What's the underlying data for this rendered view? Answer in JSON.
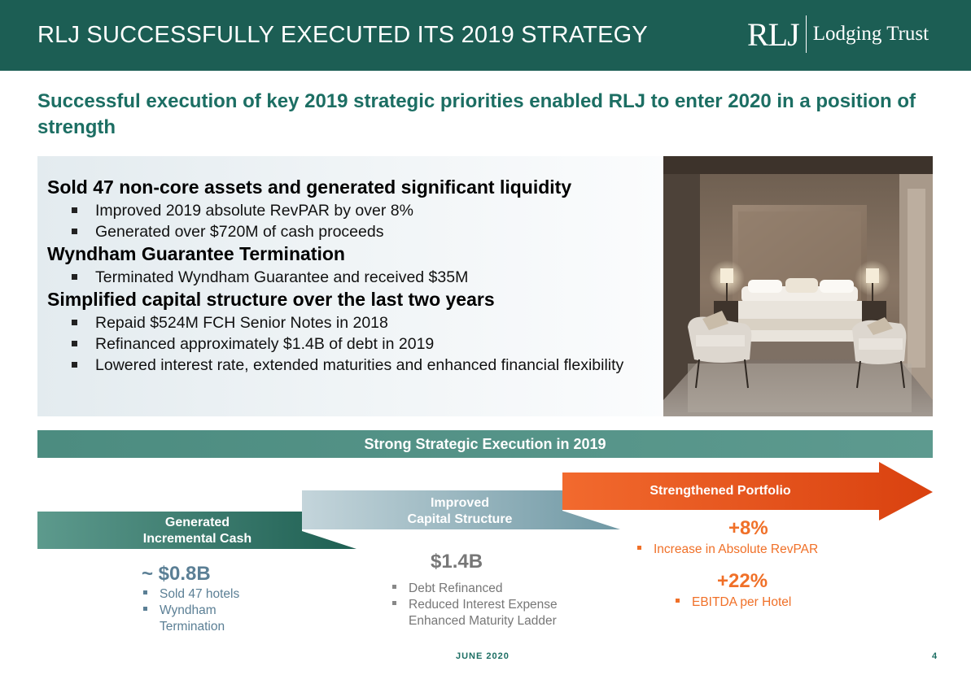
{
  "header": {
    "title": "RLJ SUCCESSFULLY EXECUTED ITS 2019 STRATEGY",
    "logo_mark": "RLJ",
    "logo_text": "Lodging Trust"
  },
  "subtitle": "Successful execution of key 2019 strategic priorities enabled RLJ to enter 2020 in a position of strength",
  "sections": [
    {
      "heading": "Sold 47 non-core assets and generated significant liquidity",
      "bullets": [
        "Improved 2019 absolute RevPAR by over 8%",
        "Generated over $720M of cash proceeds"
      ]
    },
    {
      "heading": "Wyndham Guarantee Termination",
      "bullets": [
        "Terminated Wyndham Guarantee and received $35M"
      ]
    },
    {
      "heading": "Simplified capital structure over the last two years",
      "bullets": [
        "Repaid $524M FCH Senior Notes in 2018",
        "Refinanced approximately $1.4B of debt in 2019",
        "Lowered interest rate, extended maturities and enhanced financial flexibility"
      ]
    }
  ],
  "execution_bar": "Strong Strategic Execution in 2019",
  "steps": [
    {
      "label_line1": "Generated",
      "label_line2": "Incremental Cash",
      "value": "~ $0.8B",
      "bullets": [
        "Sold 47 hotels",
        "Wyndham",
        "Termination"
      ]
    },
    {
      "label_line1": "Improved",
      "label_line2": "Capital Structure",
      "value": "$1.4B",
      "bullets": [
        "Debt Refinanced",
        "Reduced Interest Expense",
        "Enhanced Maturity Ladder"
      ]
    },
    {
      "label": "Strengthened Portfolio",
      "value1": "+8%",
      "bullet1": "Increase in Absolute RevPAR",
      "value2": "+22%",
      "bullet2": "EBITDA per Hotel"
    }
  ],
  "colors": {
    "header_green": "#1c5e54",
    "subtitle_green": "#1c6e63",
    "step1_teal": "#3f8373",
    "step2_slate": "#8fb1bd",
    "step3_orange": "#e5501c",
    "value_gray_blue": "#5b7f95",
    "value_gray": "#777777"
  },
  "footer": {
    "date": "JUNE 2020",
    "page": "4"
  }
}
